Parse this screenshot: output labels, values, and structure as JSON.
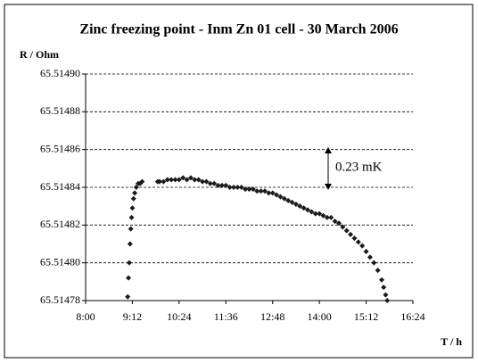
{
  "chart_data": {
    "type": "scatter",
    "title": "Zinc freezing point - Inm Zn 01 cell - 30 March 2006",
    "y_label": "R / Ohm",
    "x_label": "T / h",
    "annotation": "0.23 mK",
    "color": "#1a1a1a",
    "grid": true,
    "xlim": [
      8,
      16.4
    ],
    "xticks": [
      {
        "value": 8,
        "label": "8:00"
      },
      {
        "value": 9.2,
        "label": "9:12"
      },
      {
        "value": 10.4,
        "label": "10:24"
      },
      {
        "value": 11.6,
        "label": "11:36"
      },
      {
        "value": 12.8,
        "label": "12:48"
      },
      {
        "value": 14,
        "label": "14:00"
      },
      {
        "value": 15.2,
        "label": "15:12"
      },
      {
        "value": 16.4,
        "label": "16:24"
      }
    ],
    "ylim": [
      65.51478,
      65.5149
    ],
    "yticks": [
      {
        "value": 65.51478,
        "label": "65.51478"
      },
      {
        "value": 65.5148,
        "label": "65.51480"
      },
      {
        "value": 65.51482,
        "label": "65.51482"
      },
      {
        "value": 65.51484,
        "label": "65.51484"
      },
      {
        "value": 65.51486,
        "label": "65.51486"
      },
      {
        "value": 65.51488,
        "label": "65.51488"
      },
      {
        "value": 65.5149,
        "label": "65.51490"
      }
    ],
    "x": [
      9.08,
      9.1,
      9.12,
      9.14,
      9.16,
      9.18,
      9.2,
      9.23,
      9.26,
      9.3,
      9.35,
      9.4,
      9.45,
      9.85,
      9.9,
      10.0,
      10.1,
      10.2,
      10.3,
      10.4,
      10.5,
      10.6,
      10.7,
      10.8,
      10.9,
      11.0,
      11.1,
      11.2,
      11.3,
      11.4,
      11.5,
      11.6,
      11.7,
      11.8,
      11.9,
      12.0,
      12.1,
      12.2,
      12.3,
      12.4,
      12.5,
      12.6,
      12.7,
      12.8,
      12.9,
      13.0,
      13.1,
      13.2,
      13.3,
      13.4,
      13.5,
      13.6,
      13.7,
      13.8,
      13.9,
      14.0,
      14.1,
      14.2,
      14.3,
      14.4,
      14.5,
      14.6,
      14.7,
      14.8,
      14.9,
      15.0,
      15.1,
      15.2,
      15.3,
      15.4,
      15.5,
      15.6,
      15.65,
      15.7,
      15.74
    ],
    "values": [
      65.514782,
      65.514792,
      65.5148,
      65.51481,
      65.514818,
      65.514824,
      65.514829,
      65.514834,
      65.514837,
      65.51484,
      65.514842,
      65.514842,
      65.514843,
      65.514843,
      65.514843,
      65.514843,
      65.514844,
      65.514844,
      65.514844,
      65.514844,
      65.514845,
      65.514844,
      65.514845,
      65.514844,
      65.514844,
      65.514843,
      65.514843,
      65.514842,
      65.514842,
      65.514841,
      65.514841,
      65.514841,
      65.51484,
      65.51484,
      65.51484,
      65.51484,
      65.514839,
      65.514839,
      65.514839,
      65.514838,
      65.514838,
      65.514838,
      65.514837,
      65.514837,
      65.514836,
      65.514835,
      65.514834,
      65.514833,
      65.514832,
      65.514831,
      65.51483,
      65.514829,
      65.514828,
      65.514827,
      65.514826,
      65.514826,
      65.514825,
      65.514824,
      65.514824,
      65.514822,
      65.514821,
      65.514819,
      65.514817,
      65.514815,
      65.514813,
      65.514811,
      65.514809,
      65.514806,
      65.514803,
      65.5148,
      65.514796,
      65.514791,
      65.514787,
      65.514783,
      65.51478
    ]
  }
}
